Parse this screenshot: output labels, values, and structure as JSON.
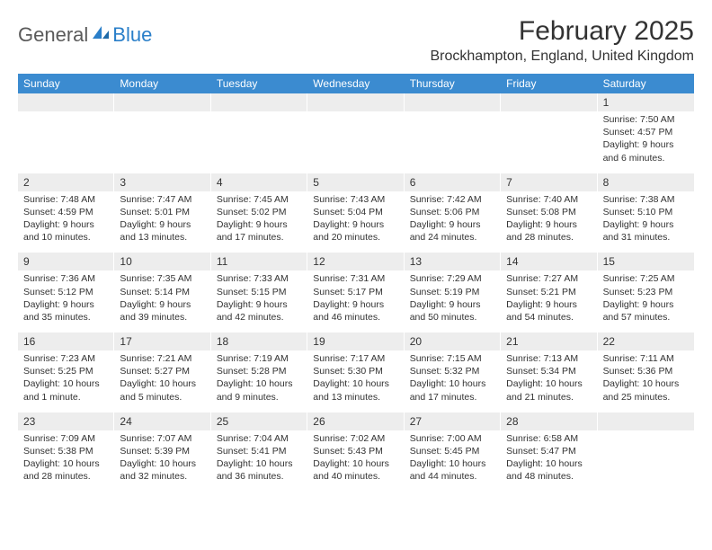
{
  "logo": {
    "text1": "General",
    "text2": "Blue"
  },
  "title": "February 2025",
  "location": "Brockhampton, England, United Kingdom",
  "colors": {
    "header_bg": "#3b8bd0",
    "header_text": "#ffffff",
    "daynum_bg": "#ededed",
    "text": "#333333",
    "logo_gray": "#5a5a5a",
    "logo_blue": "#2a7fc9",
    "background": "#ffffff"
  },
  "day_names": [
    "Sunday",
    "Monday",
    "Tuesday",
    "Wednesday",
    "Thursday",
    "Friday",
    "Saturday"
  ],
  "weeks": [
    [
      {
        "n": "",
        "d": ""
      },
      {
        "n": "",
        "d": ""
      },
      {
        "n": "",
        "d": ""
      },
      {
        "n": "",
        "d": ""
      },
      {
        "n": "",
        "d": ""
      },
      {
        "n": "",
        "d": ""
      },
      {
        "n": "1",
        "d": "Sunrise: 7:50 AM\nSunset: 4:57 PM\nDaylight: 9 hours and 6 minutes."
      }
    ],
    [
      {
        "n": "2",
        "d": "Sunrise: 7:48 AM\nSunset: 4:59 PM\nDaylight: 9 hours and 10 minutes."
      },
      {
        "n": "3",
        "d": "Sunrise: 7:47 AM\nSunset: 5:01 PM\nDaylight: 9 hours and 13 minutes."
      },
      {
        "n": "4",
        "d": "Sunrise: 7:45 AM\nSunset: 5:02 PM\nDaylight: 9 hours and 17 minutes."
      },
      {
        "n": "5",
        "d": "Sunrise: 7:43 AM\nSunset: 5:04 PM\nDaylight: 9 hours and 20 minutes."
      },
      {
        "n": "6",
        "d": "Sunrise: 7:42 AM\nSunset: 5:06 PM\nDaylight: 9 hours and 24 minutes."
      },
      {
        "n": "7",
        "d": "Sunrise: 7:40 AM\nSunset: 5:08 PM\nDaylight: 9 hours and 28 minutes."
      },
      {
        "n": "8",
        "d": "Sunrise: 7:38 AM\nSunset: 5:10 PM\nDaylight: 9 hours and 31 minutes."
      }
    ],
    [
      {
        "n": "9",
        "d": "Sunrise: 7:36 AM\nSunset: 5:12 PM\nDaylight: 9 hours and 35 minutes."
      },
      {
        "n": "10",
        "d": "Sunrise: 7:35 AM\nSunset: 5:14 PM\nDaylight: 9 hours and 39 minutes."
      },
      {
        "n": "11",
        "d": "Sunrise: 7:33 AM\nSunset: 5:15 PM\nDaylight: 9 hours and 42 minutes."
      },
      {
        "n": "12",
        "d": "Sunrise: 7:31 AM\nSunset: 5:17 PM\nDaylight: 9 hours and 46 minutes."
      },
      {
        "n": "13",
        "d": "Sunrise: 7:29 AM\nSunset: 5:19 PM\nDaylight: 9 hours and 50 minutes."
      },
      {
        "n": "14",
        "d": "Sunrise: 7:27 AM\nSunset: 5:21 PM\nDaylight: 9 hours and 54 minutes."
      },
      {
        "n": "15",
        "d": "Sunrise: 7:25 AM\nSunset: 5:23 PM\nDaylight: 9 hours and 57 minutes."
      }
    ],
    [
      {
        "n": "16",
        "d": "Sunrise: 7:23 AM\nSunset: 5:25 PM\nDaylight: 10 hours and 1 minute."
      },
      {
        "n": "17",
        "d": "Sunrise: 7:21 AM\nSunset: 5:27 PM\nDaylight: 10 hours and 5 minutes."
      },
      {
        "n": "18",
        "d": "Sunrise: 7:19 AM\nSunset: 5:28 PM\nDaylight: 10 hours and 9 minutes."
      },
      {
        "n": "19",
        "d": "Sunrise: 7:17 AM\nSunset: 5:30 PM\nDaylight: 10 hours and 13 minutes."
      },
      {
        "n": "20",
        "d": "Sunrise: 7:15 AM\nSunset: 5:32 PM\nDaylight: 10 hours and 17 minutes."
      },
      {
        "n": "21",
        "d": "Sunrise: 7:13 AM\nSunset: 5:34 PM\nDaylight: 10 hours and 21 minutes."
      },
      {
        "n": "22",
        "d": "Sunrise: 7:11 AM\nSunset: 5:36 PM\nDaylight: 10 hours and 25 minutes."
      }
    ],
    [
      {
        "n": "23",
        "d": "Sunrise: 7:09 AM\nSunset: 5:38 PM\nDaylight: 10 hours and 28 minutes."
      },
      {
        "n": "24",
        "d": "Sunrise: 7:07 AM\nSunset: 5:39 PM\nDaylight: 10 hours and 32 minutes."
      },
      {
        "n": "25",
        "d": "Sunrise: 7:04 AM\nSunset: 5:41 PM\nDaylight: 10 hours and 36 minutes."
      },
      {
        "n": "26",
        "d": "Sunrise: 7:02 AM\nSunset: 5:43 PM\nDaylight: 10 hours and 40 minutes."
      },
      {
        "n": "27",
        "d": "Sunrise: 7:00 AM\nSunset: 5:45 PM\nDaylight: 10 hours and 44 minutes."
      },
      {
        "n": "28",
        "d": "Sunrise: 6:58 AM\nSunset: 5:47 PM\nDaylight: 10 hours and 48 minutes."
      },
      {
        "n": "",
        "d": ""
      }
    ]
  ]
}
